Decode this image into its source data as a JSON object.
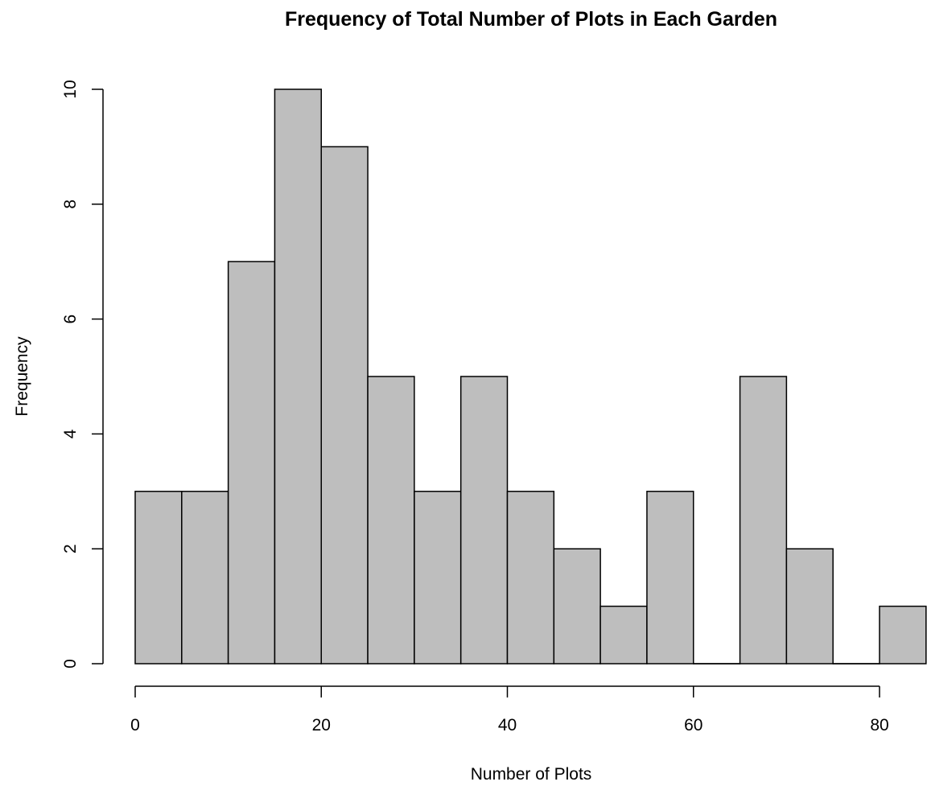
{
  "chart_data": {
    "type": "bar",
    "title": "Frequency of Total Number of Plots in Each Garden",
    "xlabel": "Number of Plots",
    "ylabel": "Frequency",
    "bins": [
      {
        "start": 0,
        "end": 5,
        "count": 3
      },
      {
        "start": 5,
        "end": 10,
        "count": 3
      },
      {
        "start": 10,
        "end": 15,
        "count": 7
      },
      {
        "start": 15,
        "end": 20,
        "count": 10
      },
      {
        "start": 20,
        "end": 25,
        "count": 9
      },
      {
        "start": 25,
        "end": 30,
        "count": 5
      },
      {
        "start": 30,
        "end": 35,
        "count": 3
      },
      {
        "start": 35,
        "end": 40,
        "count": 5
      },
      {
        "start": 40,
        "end": 45,
        "count": 3
      },
      {
        "start": 45,
        "end": 50,
        "count": 2
      },
      {
        "start": 50,
        "end": 55,
        "count": 1
      },
      {
        "start": 55,
        "end": 60,
        "count": 3
      },
      {
        "start": 60,
        "end": 65,
        "count": 0
      },
      {
        "start": 65,
        "end": 70,
        "count": 5
      },
      {
        "start": 70,
        "end": 75,
        "count": 2
      },
      {
        "start": 75,
        "end": 80,
        "count": 0
      },
      {
        "start": 80,
        "end": 85,
        "count": 1
      }
    ],
    "xlim": [
      0,
      85
    ],
    "ylim": [
      0,
      10
    ],
    "x_ticks": [
      0,
      20,
      40,
      60,
      80
    ],
    "y_ticks": [
      0,
      2,
      4,
      6,
      8,
      10
    ],
    "grid": false,
    "bar_color": "#bebebe",
    "edge_color": "#000000"
  }
}
